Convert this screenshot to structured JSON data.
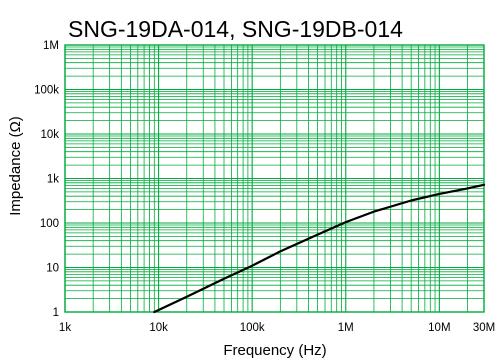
{
  "chart_data": {
    "type": "line",
    "title": "SNG-19DA-014, SNG-19DB-014",
    "xlabel": "Frequency (Hz)",
    "ylabel": "Impedance (Ω)",
    "x_scale": "log",
    "y_scale": "log",
    "xlim": [
      1000,
      30000000
    ],
    "ylim": [
      1,
      1000000
    ],
    "x_ticks": [
      {
        "value": 1000,
        "label": "1k"
      },
      {
        "value": 10000,
        "label": "10k"
      },
      {
        "value": 100000,
        "label": "100k"
      },
      {
        "value": 1000000,
        "label": "1M"
      },
      {
        "value": 10000000,
        "label": "10M"
      },
      {
        "value": 30000000,
        "label": "30M"
      }
    ],
    "y_ticks": [
      {
        "value": 1,
        "label": "1"
      },
      {
        "value": 10,
        "label": "10"
      },
      {
        "value": 100,
        "label": "100"
      },
      {
        "value": 1000,
        "label": "1k"
      },
      {
        "value": 10000,
        "label": "10k"
      },
      {
        "value": 100000,
        "label": "100k"
      },
      {
        "value": 1000000,
        "label": "1M"
      }
    ],
    "grid": true,
    "grid_color": "#00aa3c",
    "line_color": "#000000",
    "series": [
      {
        "x": [
          9000,
          20000,
          50000,
          100000,
          200000,
          500000,
          1000000,
          2000000,
          5000000,
          10000000,
          20000000,
          30000000
        ],
        "y": [
          1,
          2.2,
          5.6,
          11,
          23,
          55,
          105,
          180,
          320,
          450,
          600,
          720
        ]
      }
    ]
  }
}
